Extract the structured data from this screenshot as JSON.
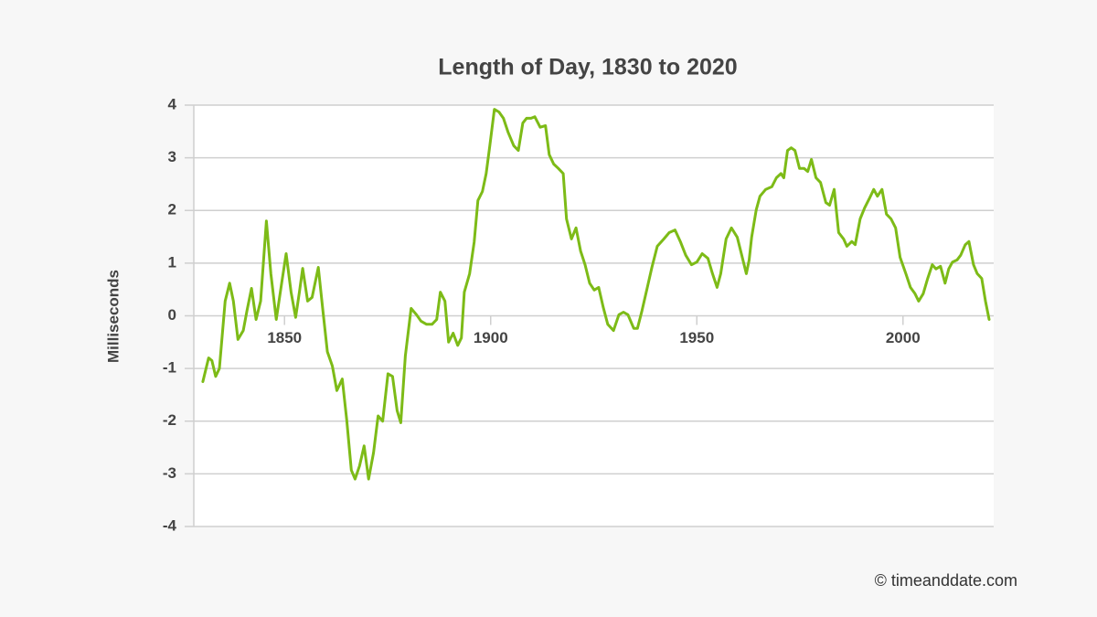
{
  "chart_data": {
    "type": "line",
    "title": "Length of Day, 1830 to 2020",
    "y_label": "Milliseconds",
    "credit": "© timeanddate.com",
    "color": "#7dbb17",
    "grid": true,
    "xlim": [
      1828,
      2022
    ],
    "ylim": [
      -4,
      4
    ],
    "xticks": [
      1850,
      1900,
      1950,
      2000
    ],
    "yticks": [
      -4,
      -3,
      -2,
      -1,
      0,
      1,
      2,
      3,
      4
    ],
    "x": [
      1830.2,
      1831.6,
      1832.4,
      1833.3,
      1834.2,
      1835.6,
      1836.7,
      1837.6,
      1838.7,
      1840,
      1840.9,
      1842,
      1843.1,
      1844.2,
      1845.6,
      1846.7,
      1848,
      1849.3,
      1850.4,
      1851.6,
      1852.7,
      1853.6,
      1854.4,
      1855.6,
      1856.7,
      1858.2,
      1859.3,
      1860.4,
      1861.6,
      1862.7,
      1864,
      1865.1,
      1866.2,
      1867.1,
      1868.2,
      1869.3,
      1870.4,
      1871.6,
      1872.7,
      1873.8,
      1875.1,
      1876.2,
      1877.3,
      1878.2,
      1879.3,
      1880.7,
      1882,
      1883.1,
      1884.4,
      1885.8,
      1886.9,
      1887.8,
      1888.9,
      1889.8,
      1890.9,
      1892,
      1892.9,
      1893.6,
      1894.9,
      1896,
      1896.9,
      1898,
      1898.9,
      1899.8,
      1900.9,
      1902,
      1903.1,
      1904.2,
      1905.6,
      1906.7,
      1907.8,
      1908.7,
      1909.8,
      1910.7,
      1912,
      1913.3,
      1914.2,
      1915.3,
      1916.4,
      1917.6,
      1918.4,
      1919.6,
      1920.7,
      1921.8,
      1922.9,
      1924,
      1925.1,
      1926.2,
      1927.3,
      1928.4,
      1929.8,
      1931.1,
      1932.2,
      1933.3,
      1934.7,
      1935.6,
      1936.7,
      1938,
      1939.1,
      1940.4,
      1942,
      1943.3,
      1944.7,
      1946,
      1947.3,
      1948.7,
      1950,
      1951.3,
      1952.7,
      1953.8,
      1954.9,
      1955.8,
      1957.1,
      1958.4,
      1959.8,
      1960.9,
      1962,
      1962.7,
      1963.3,
      1964.4,
      1965.3,
      1966.7,
      1968.2,
      1969.3,
      1970.4,
      1971.1,
      1972,
      1972.9,
      1973.8,
      1974.9,
      1976,
      1976.9,
      1977.8,
      1978.9,
      1980,
      1981.3,
      1982.2,
      1983.3,
      1984.4,
      1985.6,
      1986.4,
      1987.6,
      1988.4,
      1989.6,
      1990.7,
      1991.8,
      1992.9,
      1993.8,
      1994.9,
      1996,
      1997.1,
      1998.2,
      1999.3,
      2000.7,
      2001.8,
      2002.9,
      2003.8,
      2004.9,
      2006,
      2007.1,
      2008,
      2009.1,
      2010.2,
      2011.1,
      2012,
      2013.1,
      2014,
      2015.1,
      2016,
      2017.1,
      2018,
      2019.1,
      2020,
      2020.9
    ],
    "values": [
      -1.25,
      -0.8,
      -0.85,
      -1.15,
      -1.0,
      0.28,
      0.62,
      0.28,
      -0.45,
      -0.28,
      0.1,
      0.52,
      -0.07,
      0.28,
      1.8,
      0.8,
      -0.07,
      0.62,
      1.18,
      0.45,
      -0.03,
      0.45,
      0.9,
      0.28,
      0.35,
      0.92,
      0.1,
      -0.68,
      -0.95,
      -1.42,
      -1.2,
      -1.98,
      -2.93,
      -3.1,
      -2.85,
      -2.47,
      -3.1,
      -2.6,
      -1.9,
      -2.0,
      -1.1,
      -1.15,
      -1.8,
      -2.03,
      -0.76,
      0.14,
      0.02,
      -0.1,
      -0.16,
      -0.16,
      -0.07,
      0.45,
      0.28,
      -0.5,
      -0.33,
      -0.56,
      -0.42,
      0.45,
      0.8,
      1.4,
      2.19,
      2.36,
      2.7,
      3.23,
      3.92,
      3.87,
      3.75,
      3.49,
      3.23,
      3.14,
      3.66,
      3.75,
      3.75,
      3.78,
      3.58,
      3.61,
      3.06,
      2.88,
      2.8,
      2.7,
      1.84,
      1.46,
      1.67,
      1.23,
      0.97,
      0.62,
      0.49,
      0.54,
      0.16,
      -0.16,
      -0.28,
      0.02,
      0.07,
      0.02,
      -0.24,
      -0.24,
      0.1,
      0.54,
      0.92,
      1.32,
      1.46,
      1.58,
      1.63,
      1.41,
      1.15,
      0.97,
      1.02,
      1.18,
      1.09,
      0.8,
      0.54,
      0.8,
      1.46,
      1.67,
      1.49,
      1.15,
      0.8,
      1.06,
      1.49,
      2.01,
      2.27,
      2.4,
      2.45,
      2.62,
      2.7,
      2.62,
      3.14,
      3.19,
      3.14,
      2.8,
      2.8,
      2.74,
      2.97,
      2.62,
      2.53,
      2.15,
      2.1,
      2.4,
      1.58,
      1.46,
      1.32,
      1.41,
      1.35,
      1.84,
      2.05,
      2.22,
      2.4,
      2.27,
      2.4,
      1.93,
      1.84,
      1.67,
      1.11,
      0.8,
      0.54,
      0.42,
      0.28,
      0.42,
      0.71,
      0.97,
      0.89,
      0.94,
      0.62,
      0.89,
      1.02,
      1.06,
      1.15,
      1.35,
      1.41,
      0.97,
      0.8,
      0.71,
      0.28,
      -0.07
    ]
  }
}
